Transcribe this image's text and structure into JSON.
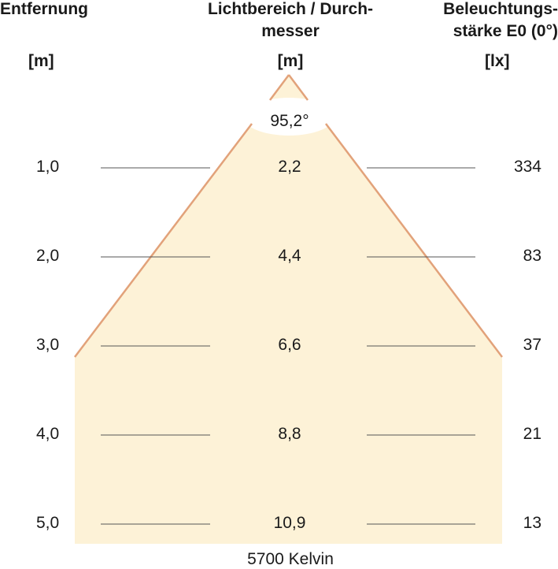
{
  "headers": {
    "distance": "Entfernung",
    "distance_unit": "[m]",
    "beam_line1": "Lichtbereich / Durch-",
    "beam_line2": "messer",
    "beam_unit": "[m]",
    "lux_line1": "Beleuchtungs-",
    "lux_line2": "stärke E0 (0°)",
    "lux_unit": "[lx]"
  },
  "beam_angle": "95,2°",
  "rows": [
    {
      "distance": "1,0",
      "diameter": "2,2",
      "illuminance": "334"
    },
    {
      "distance": "2,0",
      "diameter": "4,4",
      "illuminance": "83"
    },
    {
      "distance": "3,0",
      "diameter": "6,6",
      "illuminance": "37"
    },
    {
      "distance": "4,0",
      "diameter": "8,8",
      "illuminance": "21"
    },
    {
      "distance": "5,0",
      "diameter": "10,9",
      "illuminance": "13"
    }
  ],
  "footer": "5700 Kelvin",
  "colors": {
    "beam_fill": "#fdf2d7",
    "beam_edge": "#e2a27a",
    "guide_line": "#555555"
  }
}
